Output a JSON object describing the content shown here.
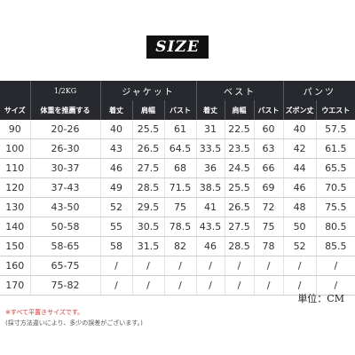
{
  "title": "SIZE",
  "table": {
    "group_header": {
      "unit": "1/2KG",
      "jacket": "ジャケット",
      "vest": "ベスト",
      "pants": "パンツ"
    },
    "sub_header": [
      "サイズ",
      "体重を推薦する",
      "着丈",
      "肩幅",
      "バスト",
      "着丈",
      "肩幅",
      "バスト",
      "ズボン丈",
      "ウエスト"
    ],
    "rows": [
      [
        "90",
        "20-26",
        "40",
        "25.5",
        "61",
        "31",
        "22.5",
        "60",
        "40",
        "57.5"
      ],
      [
        "100",
        "26-30",
        "43",
        "26.5",
        "64.5",
        "33.5",
        "23.5",
        "63",
        "42",
        "61.5"
      ],
      [
        "110",
        "30-37",
        "46",
        "27.5",
        "68",
        "36",
        "24.5",
        "66",
        "44",
        "65.5"
      ],
      [
        "120",
        "37-43",
        "49",
        "28.5",
        "71.5",
        "38.5",
        "25.5",
        "69",
        "46",
        "70.5"
      ],
      [
        "130",
        "43-50",
        "52",
        "29.5",
        "75",
        "41",
        "26.5",
        "72",
        "48",
        "75.5"
      ],
      [
        "140",
        "50-58",
        "55",
        "30.5",
        "78.5",
        "43.5",
        "27.5",
        "75",
        "50",
        "80.5"
      ],
      [
        "150",
        "58-65",
        "58",
        "31.5",
        "82",
        "46",
        "28.5",
        "78",
        "52",
        "85.5"
      ],
      [
        "160",
        "65-75",
        "/",
        "/",
        "/",
        "/",
        "/",
        "/",
        "/",
        "/"
      ],
      [
        "170",
        "75-82",
        "/",
        "/",
        "/",
        "/",
        "/",
        "/",
        "/",
        "/"
      ]
    ]
  },
  "unit_note": "単位：CM",
  "notes": [
    "※すべて平置きサイズです。",
    "(採寸方法違いにより、多少の誤差がございます。)"
  ]
}
